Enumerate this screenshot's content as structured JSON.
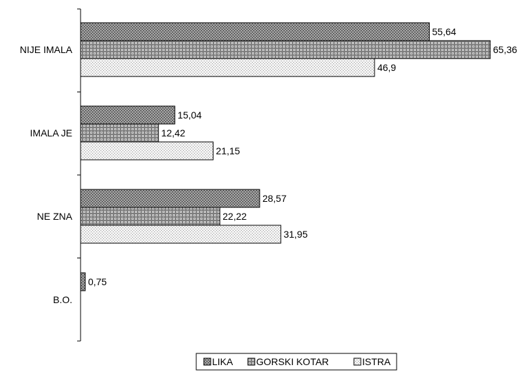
{
  "chart_data": {
    "type": "bar",
    "orientation": "horizontal",
    "title": "",
    "xlabel": "",
    "ylabel": "",
    "categories": [
      "NIJE IMALA",
      "IMALA JE",
      "NE ZNA",
      "B.O."
    ],
    "series": [
      {
        "name": "LIKA",
        "values": [
          55.64,
          15.04,
          28.57,
          0.75
        ],
        "labels": [
          "55,64",
          "15,04",
          "28,57",
          "0,75"
        ],
        "pattern": "dense-dots-dark"
      },
      {
        "name": "GORSKI KOTAR",
        "values": [
          65.36,
          12.42,
          22.22,
          null
        ],
        "labels": [
          "65,36",
          "12,42",
          "22,22",
          ""
        ],
        "pattern": "grid-dark"
      },
      {
        "name": "ISTRA",
        "values": [
          46.9,
          21.15,
          31.95,
          null
        ],
        "labels": [
          "46,9",
          "21,15",
          "31,95",
          ""
        ],
        "pattern": "sparse-dots-light"
      }
    ],
    "xlim": [
      0,
      65.36
    ],
    "grid": false,
    "legend": "bottom"
  }
}
